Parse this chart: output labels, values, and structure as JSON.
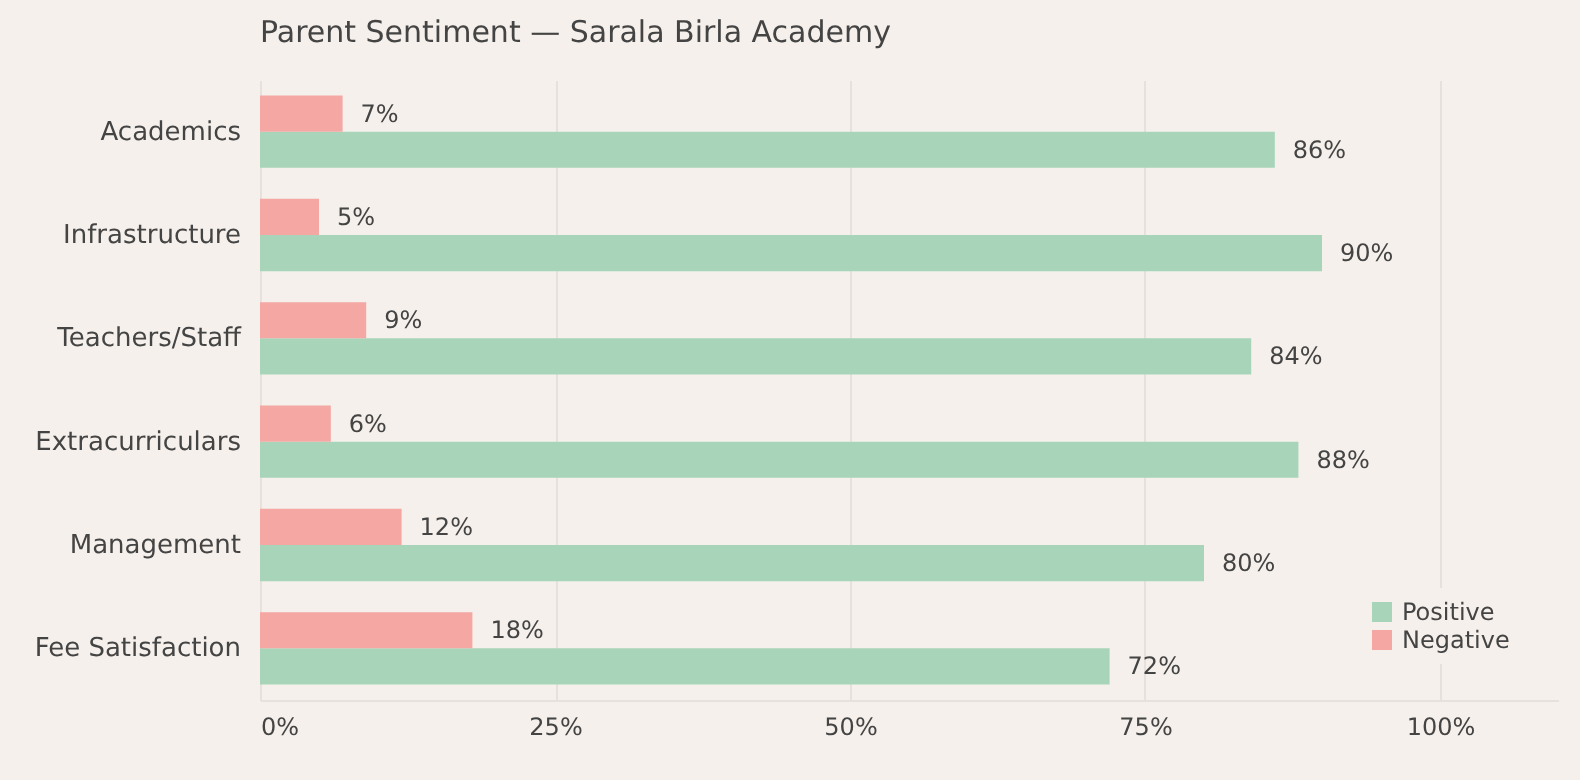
{
  "chart_data": {
    "type": "bar",
    "orientation": "horizontal",
    "title": "Parent Sentiment — Sarala Birla Academy",
    "categories": [
      "Academics",
      "Infrastructure",
      "Teachers/Staff",
      "Extracurriculars",
      "Management",
      "Fee Satisfaction"
    ],
    "series": [
      {
        "name": "Positive",
        "color": "#a8d5ba",
        "values": [
          86,
          90,
          84,
          88,
          80,
          72
        ],
        "value_labels": [
          "86%",
          "90%",
          "84%",
          "88%",
          "80%",
          "72%"
        ]
      },
      {
        "name": "Negative",
        "color": "#f4a7a3",
        "values": [
          7,
          5,
          9,
          6,
          12,
          18
        ],
        "value_labels": [
          "7%",
          "5%",
          "9%",
          "6%",
          "12%",
          "18%"
        ]
      }
    ],
    "xlim": [
      0,
      110
    ],
    "xticks": [
      {
        "value": 0,
        "label": "0%"
      },
      {
        "value": 25,
        "label": "25%"
      },
      {
        "value": 50,
        "label": "50%"
      },
      {
        "value": 75,
        "label": "75%"
      },
      {
        "value": 100,
        "label": "100%"
      }
    ],
    "grid": "x",
    "legend": "bottom right"
  }
}
